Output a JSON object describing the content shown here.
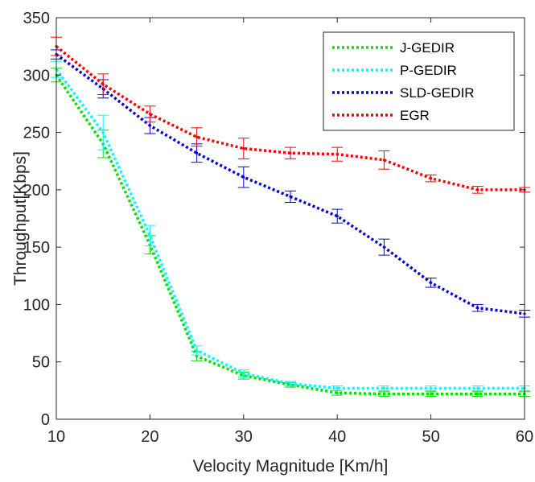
{
  "chart_data": {
    "type": "line",
    "xlabel": "Velocity Magnitude [Km/h]",
    "ylabel": "Throughput[Kbps]",
    "xlim": [
      10,
      60
    ],
    "ylim": [
      0,
      350
    ],
    "x_ticks": [
      10,
      20,
      30,
      40,
      50,
      60
    ],
    "y_ticks": [
      0,
      50,
      100,
      150,
      200,
      250,
      300,
      350
    ],
    "line_style": "dotted",
    "error_bars": true,
    "grid": false,
    "legend_position": "top-right",
    "x": [
      10,
      15,
      20,
      25,
      30,
      35,
      40,
      45,
      50,
      55,
      60
    ],
    "series": [
      {
        "name": "J-GEDIR",
        "color": "#00e000",
        "values": [
          300,
          240,
          152,
          55,
          38,
          30,
          23,
          22,
          22,
          22,
          22
        ],
        "errors": [
          6,
          12,
          8,
          4,
          3,
          2,
          2,
          2,
          2,
          2,
          2
        ]
      },
      {
        "name": "P-GEDIR",
        "color": "#00ffff",
        "values": [
          305,
          250,
          160,
          60,
          40,
          31,
          27,
          27,
          27,
          27,
          27
        ],
        "errors": [
          7,
          15,
          9,
          4,
          3,
          2,
          2,
          2,
          2,
          2,
          2
        ]
      },
      {
        "name": "SLD-GEDIR",
        "color": "#0000e0",
        "values": [
          318,
          288,
          256,
          232,
          211,
          194,
          177,
          150,
          119,
          97,
          92
        ],
        "errors": [
          4,
          8,
          7,
          8,
          9,
          5,
          6,
          7,
          4,
          3,
          3
        ]
      },
      {
        "name": "EGR",
        "color": "#ff0000",
        "values": [
          325,
          292,
          266,
          246,
          236,
          232,
          231,
          226,
          210,
          200,
          200
        ],
        "errors": [
          8,
          9,
          7,
          8,
          9,
          5,
          6,
          8,
          3,
          3,
          2
        ]
      }
    ]
  }
}
